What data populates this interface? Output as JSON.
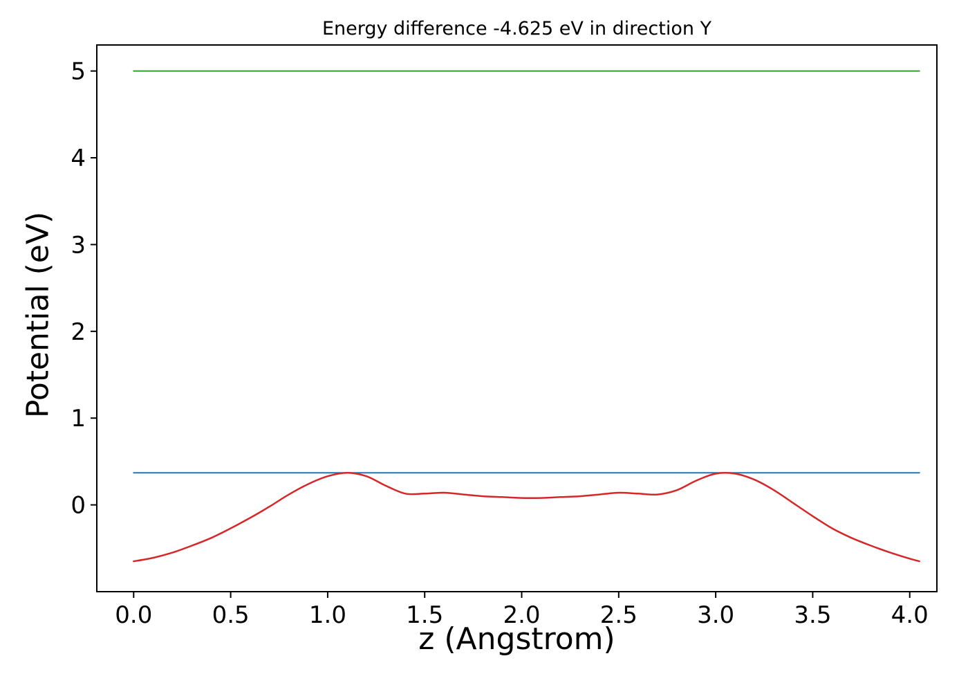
{
  "chart_data": {
    "type": "line",
    "title": "Energy difference -4.625 eV in direction Y",
    "xlabel": "z (Angstrom)",
    "ylabel": "Potential (eV)",
    "xlim": [
      -0.19,
      4.14
    ],
    "ylim": [
      -1.0,
      5.3
    ],
    "xticks": [
      0.0,
      0.5,
      1.0,
      1.5,
      2.0,
      2.5,
      3.0,
      3.5,
      4.0
    ],
    "xtick_labels": [
      "0.0",
      "0.5",
      "1.0",
      "1.5",
      "2.0",
      "2.5",
      "3.0",
      "3.5",
      "4.0"
    ],
    "yticks": [
      0,
      1,
      2,
      3,
      4,
      5
    ],
    "ytick_labels": [
      "0",
      "1",
      "2",
      "3",
      "4",
      "5"
    ],
    "grid": false,
    "legend": "none",
    "frame_color": "#000000",
    "series": [
      {
        "name": "upper-reference-line",
        "color": "#2ca02c",
        "width": 2,
        "x": [
          0.0,
          4.05
        ],
        "y": [
          5.0,
          5.0
        ]
      },
      {
        "name": "lower-reference-line",
        "color": "#1f77b4",
        "width": 2,
        "x": [
          0.0,
          4.05
        ],
        "y": [
          0.37,
          0.37
        ]
      },
      {
        "name": "potential-curve",
        "color": "#d62728",
        "width": 2.5,
        "x": [
          0.0,
          0.1,
          0.2,
          0.3,
          0.4,
          0.5,
          0.6,
          0.7,
          0.8,
          0.9,
          1.0,
          1.1,
          1.2,
          1.3,
          1.4,
          1.5,
          1.6,
          1.7,
          1.8,
          1.9,
          2.0,
          2.1,
          2.2,
          2.3,
          2.4,
          2.5,
          2.6,
          2.7,
          2.8,
          2.9,
          3.0,
          3.1,
          3.2,
          3.3,
          3.4,
          3.5,
          3.6,
          3.7,
          3.8,
          3.9,
          4.0,
          4.05
        ],
        "y": [
          -0.65,
          -0.61,
          -0.55,
          -0.47,
          -0.38,
          -0.27,
          -0.15,
          -0.02,
          0.12,
          0.24,
          0.33,
          0.37,
          0.33,
          0.22,
          0.13,
          0.13,
          0.14,
          0.12,
          0.1,
          0.09,
          0.08,
          0.08,
          0.09,
          0.1,
          0.12,
          0.14,
          0.13,
          0.12,
          0.17,
          0.28,
          0.36,
          0.36,
          0.29,
          0.17,
          0.02,
          -0.13,
          -0.27,
          -0.38,
          -0.47,
          -0.55,
          -0.62,
          -0.65
        ]
      }
    ]
  }
}
